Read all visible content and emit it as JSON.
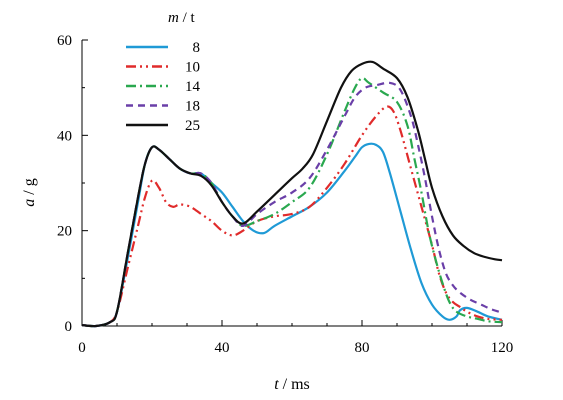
{
  "chart_data": {
    "type": "line",
    "title": "",
    "xlabel": {
      "var": "t",
      "unit": " / ms"
    },
    "ylabel": {
      "var": "a",
      "unit": " / g"
    },
    "xlim": [
      0,
      120
    ],
    "ylim": [
      0,
      60
    ],
    "xticks": [
      0,
      40,
      80,
      120
    ],
    "yticks": [
      0,
      20,
      40,
      60
    ],
    "grid": false,
    "legend": {
      "title_var": "m",
      "title_unit": " / t",
      "placement": "top-left"
    },
    "series": [
      {
        "name": "8",
        "color": "#1f9ad6",
        "dash": "solid",
        "points": [
          [
            0,
            0.2
          ],
          [
            4,
            0
          ],
          [
            8,
            0.8
          ],
          [
            10,
            3
          ],
          [
            13,
            14
          ],
          [
            16,
            26
          ],
          [
            18,
            34
          ],
          [
            20,
            37.5
          ],
          [
            22,
            37
          ],
          [
            25,
            35
          ],
          [
            28,
            33
          ],
          [
            31,
            32
          ],
          [
            34,
            32
          ],
          [
            37,
            30
          ],
          [
            40,
            28
          ],
          [
            43,
            25
          ],
          [
            46,
            22
          ],
          [
            49,
            20
          ],
          [
            52,
            19.5
          ],
          [
            55,
            21
          ],
          [
            60,
            23
          ],
          [
            65,
            25
          ],
          [
            70,
            28
          ],
          [
            75,
            32.5
          ],
          [
            78,
            35.5
          ],
          [
            80,
            37.5
          ],
          [
            82,
            38.2
          ],
          [
            84,
            38
          ],
          [
            86,
            36.5
          ],
          [
            88,
            32
          ],
          [
            91,
            24
          ],
          [
            94,
            16
          ],
          [
            97,
            9
          ],
          [
            100,
            4.5
          ],
          [
            103,
            2
          ],
          [
            105,
            1.3
          ],
          [
            107,
            2
          ],
          [
            108,
            3.3
          ],
          [
            110,
            3.8
          ],
          [
            113,
            3
          ],
          [
            116,
            2
          ],
          [
            120,
            1.3
          ]
        ]
      },
      {
        "name": "10",
        "color": "#e02b2b",
        "dash": "10 4 2 4 2 4",
        "points": [
          [
            0,
            0.2
          ],
          [
            4,
            0
          ],
          [
            8,
            0.8
          ],
          [
            10,
            3
          ],
          [
            13,
            12
          ],
          [
            16,
            21
          ],
          [
            18,
            27
          ],
          [
            20,
            30.5
          ],
          [
            22,
            29
          ],
          [
            24,
            26
          ],
          [
            26,
            25
          ],
          [
            28,
            25.5
          ],
          [
            31,
            25
          ],
          [
            34,
            23.5
          ],
          [
            37,
            22
          ],
          [
            40,
            20
          ],
          [
            43,
            19
          ],
          [
            46,
            20
          ],
          [
            50,
            22
          ],
          [
            55,
            23
          ],
          [
            60,
            23.5
          ],
          [
            65,
            25
          ],
          [
            70,
            29
          ],
          [
            75,
            34
          ],
          [
            80,
            40
          ],
          [
            84,
            44
          ],
          [
            87,
            46
          ],
          [
            89,
            45
          ],
          [
            91,
            41
          ],
          [
            94,
            33
          ],
          [
            97,
            25
          ],
          [
            100,
            17
          ],
          [
            102,
            11
          ],
          [
            104,
            7
          ],
          [
            106,
            5
          ],
          [
            108,
            4
          ],
          [
            110,
            3
          ],
          [
            113,
            2
          ],
          [
            116,
            1.5
          ],
          [
            120,
            1.3
          ]
        ]
      },
      {
        "name": "14",
        "color": "#2aa84f",
        "dash": "10 4 2 4",
        "points": [
          [
            0,
            0.2
          ],
          [
            4,
            0
          ],
          [
            8,
            0.8
          ],
          [
            10,
            3
          ],
          [
            13,
            15
          ],
          [
            16,
            27
          ],
          [
            18,
            34
          ],
          [
            20,
            37.5
          ],
          [
            22,
            37
          ],
          [
            25,
            35
          ],
          [
            28,
            33
          ],
          [
            31,
            32
          ],
          [
            34,
            32
          ],
          [
            37,
            30
          ],
          [
            40,
            26
          ],
          [
            43,
            23
          ],
          [
            46,
            21
          ],
          [
            50,
            22
          ],
          [
            55,
            23.5
          ],
          [
            60,
            26
          ],
          [
            65,
            29
          ],
          [
            70,
            36
          ],
          [
            75,
            45
          ],
          [
            78,
            50
          ],
          [
            80,
            52
          ],
          [
            82,
            51
          ],
          [
            86,
            49
          ],
          [
            90,
            47
          ],
          [
            93,
            42
          ],
          [
            95,
            35
          ],
          [
            97,
            28
          ],
          [
            99,
            20
          ],
          [
            101,
            14
          ],
          [
            103,
            9
          ],
          [
            105,
            5
          ],
          [
            107,
            3
          ],
          [
            110,
            2
          ],
          [
            113,
            1.5
          ],
          [
            116,
            1
          ],
          [
            120,
            0.8
          ]
        ]
      },
      {
        "name": "18",
        "color": "#6a3fa8",
        "dash": "7 5",
        "points": [
          [
            0,
            0.2
          ],
          [
            4,
            0
          ],
          [
            8,
            0.8
          ],
          [
            10,
            3
          ],
          [
            13,
            15
          ],
          [
            16,
            27
          ],
          [
            18,
            34
          ],
          [
            20,
            37.5
          ],
          [
            22,
            37
          ],
          [
            25,
            35
          ],
          [
            28,
            33
          ],
          [
            31,
            32
          ],
          [
            34,
            32
          ],
          [
            37,
            30
          ],
          [
            40,
            26
          ],
          [
            43,
            23
          ],
          [
            46,
            21
          ],
          [
            50,
            23.5
          ],
          [
            55,
            26
          ],
          [
            60,
            28
          ],
          [
            65,
            31
          ],
          [
            70,
            37
          ],
          [
            75,
            44
          ],
          [
            78,
            48
          ],
          [
            81,
            50
          ],
          [
            84,
            50.5
          ],
          [
            88,
            51
          ],
          [
            91,
            49.5
          ],
          [
            94,
            44
          ],
          [
            96,
            38
          ],
          [
            98,
            31
          ],
          [
            100,
            23
          ],
          [
            102,
            16
          ],
          [
            104,
            11
          ],
          [
            106,
            8.5
          ],
          [
            108,
            7
          ],
          [
            111,
            5.5
          ],
          [
            114,
            4.5
          ],
          [
            117,
            3.5
          ],
          [
            120,
            2.8
          ]
        ]
      },
      {
        "name": "25",
        "color": "#111111",
        "dash": "solid",
        "points": [
          [
            0,
            0.2
          ],
          [
            4,
            0
          ],
          [
            8,
            0.8
          ],
          [
            10,
            3
          ],
          [
            13,
            15
          ],
          [
            16,
            27
          ],
          [
            18,
            34
          ],
          [
            20,
            37.5
          ],
          [
            22,
            37
          ],
          [
            25,
            35
          ],
          [
            28,
            33
          ],
          [
            31,
            32
          ],
          [
            34,
            31.5
          ],
          [
            37,
            29.5
          ],
          [
            40,
            26
          ],
          [
            43,
            23
          ],
          [
            46,
            21.5
          ],
          [
            50,
            24
          ],
          [
            55,
            27.5
          ],
          [
            60,
            31
          ],
          [
            63,
            33
          ],
          [
            66,
            36
          ],
          [
            70,
            43
          ],
          [
            74,
            50
          ],
          [
            77,
            53.5
          ],
          [
            80,
            55
          ],
          [
            83,
            55.4
          ],
          [
            86,
            54
          ],
          [
            90,
            52
          ],
          [
            93,
            48
          ],
          [
            96,
            41
          ],
          [
            98,
            35
          ],
          [
            100,
            29
          ],
          [
            103,
            23
          ],
          [
            106,
            19
          ],
          [
            109,
            16.8
          ],
          [
            112,
            15.3
          ],
          [
            115,
            14.5
          ],
          [
            118,
            14
          ],
          [
            120,
            13.8
          ]
        ]
      }
    ]
  }
}
